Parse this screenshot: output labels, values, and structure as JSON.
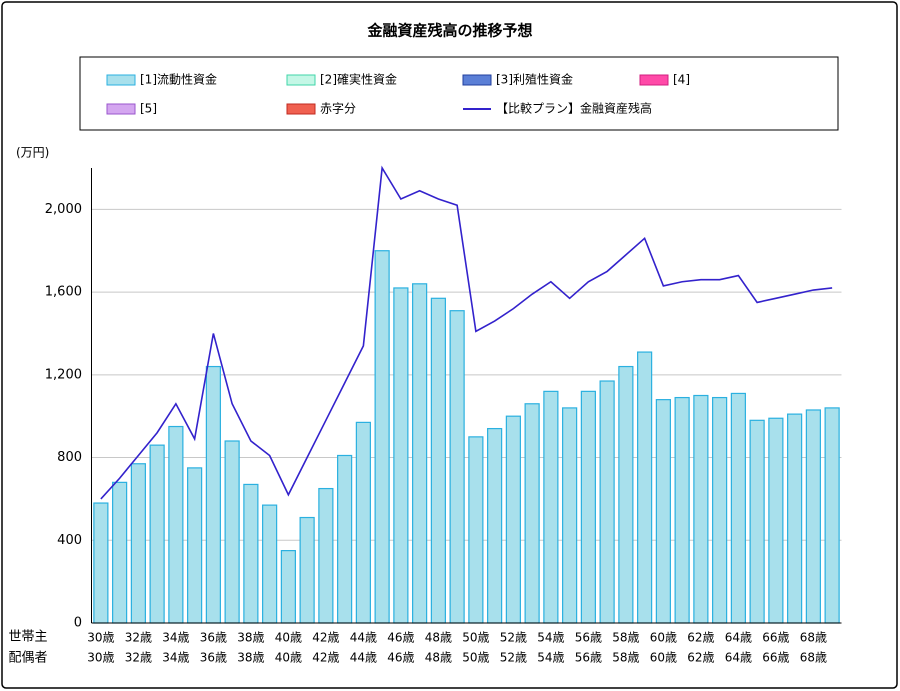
{
  "chart_data": {
    "type": "bar",
    "title": "金融資産残高の推移予想",
    "y_label": "(万円)",
    "row_labels": [
      "世帯主",
      "配偶者"
    ],
    "categories": [
      "30歳",
      null,
      "32歳",
      null,
      "34歳",
      null,
      "36歳",
      null,
      "38歳",
      null,
      "40歳",
      null,
      "42歳",
      null,
      "44歳",
      null,
      "46歳",
      null,
      "48歳",
      null,
      "50歳",
      null,
      "52歳",
      null,
      "54歳",
      null,
      "56歳",
      null,
      "58歳",
      null,
      "60歳",
      null,
      "62歳",
      null,
      "64歳",
      null,
      "66歳",
      null,
      "68歳",
      null
    ],
    "categories2": [
      "30歳",
      null,
      "32歳",
      null,
      "34歳",
      null,
      "36歳",
      null,
      "38歳",
      null,
      "40歳",
      null,
      "42歳",
      null,
      "44歳",
      null,
      "46歳",
      null,
      "48歳",
      null,
      "50歳",
      null,
      "52歳",
      null,
      "54歳",
      null,
      "56歳",
      null,
      "58歳",
      null,
      "60歳",
      null,
      "62歳",
      null,
      "64歳",
      null,
      "66歳",
      null,
      "68歳",
      null
    ],
    "series": [
      {
        "name": "[1]流動性資金",
        "color": "#a8e0ec",
        "stroke": "#2ab0e0",
        "type": "bar",
        "values": [
          580,
          680,
          770,
          860,
          950,
          750,
          1240,
          880,
          670,
          570,
          350,
          510,
          650,
          810,
          970,
          1800,
          1620,
          1640,
          1570,
          1510,
          900,
          940,
          1000,
          1060,
          1120,
          1040,
          1120,
          1170,
          1240,
          1310,
          1080,
          1090,
          1100,
          1090,
          1110,
          980,
          990,
          1010,
          1030,
          1040
        ]
      },
      {
        "name": "[2]確実性資金",
        "color": "#c4f7e6",
        "stroke": "#3fd6a8",
        "type": "bar"
      },
      {
        "name": "[3]利殖性資金",
        "color": "#5b7fd6",
        "stroke": "#203f9e",
        "type": "bar"
      },
      {
        "name": "[4]",
        "color": "#ff4aa8",
        "stroke": "#d01f7f",
        "type": "bar"
      },
      {
        "name": "[5]",
        "color": "#d4a6f0",
        "stroke": "#9a55cc",
        "type": "bar"
      },
      {
        "name": "赤字分",
        "color": "#f06050",
        "stroke": "#c02a20",
        "type": "bar"
      },
      {
        "name": "【比較プラン】金融資産残高",
        "color": "#3322cc",
        "type": "line",
        "values": [
          600,
          700,
          810,
          920,
          1060,
          890,
          1400,
          1060,
          880,
          810,
          620,
          800,
          980,
          1160,
          1340,
          2200,
          2050,
          2090,
          2050,
          2020,
          1410,
          1460,
          1520,
          1590,
          1650,
          1570,
          1650,
          1700,
          1780,
          1860,
          1630,
          1650,
          1660,
          1660,
          1680,
          1550,
          1570,
          1590,
          1610,
          1620
        ]
      }
    ],
    "ylim": [
      0,
      2200
    ],
    "yticks": [
      0,
      400,
      800,
      {
        "value": 1200,
        "label": "1,200"
      },
      {
        "value": 1600,
        "label": "1,600"
      },
      {
        "value": 2000,
        "label": "2,000"
      }
    ],
    "grid": true
  }
}
